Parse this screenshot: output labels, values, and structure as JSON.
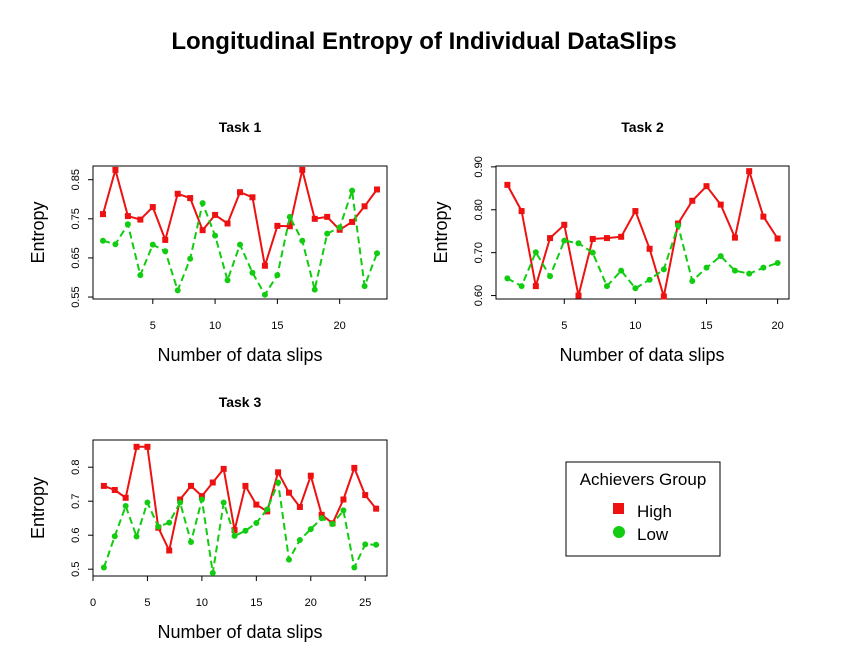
{
  "title": "Longitudinal Entropy of Individual DataSlips",
  "colors": {
    "High": "#ee1111",
    "Low": "#11cc11"
  },
  "legend": {
    "title": "Achievers Group",
    "entries": [
      {
        "label": "High",
        "marker": "square",
        "color": "#ee1111"
      },
      {
        "label": "Low",
        "marker": "circle",
        "color": "#11cc11"
      }
    ]
  },
  "chart_data": [
    {
      "type": "line",
      "title": "Task 1",
      "xlabel": "Number of data slips",
      "ylabel": "Entropy",
      "xlim": [
        0.2,
        23.8
      ],
      "ylim": [
        0.545,
        0.885
      ],
      "xticks": [
        5,
        10,
        15,
        20
      ],
      "yticks": [
        0.55,
        0.65,
        0.75,
        0.85
      ],
      "ytick_labels": [
        "0.55",
        "0.65",
        "0.75",
        "0.85"
      ],
      "series": [
        {
          "name": "High",
          "line": "solid",
          "marker": "square",
          "x": [
            1,
            2,
            3,
            4,
            5,
            6,
            7,
            8,
            9,
            10,
            11,
            12,
            13,
            14,
            15,
            16,
            17,
            18,
            19,
            20,
            21,
            22,
            23
          ],
          "y": [
            0.762,
            0.875,
            0.757,
            0.748,
            0.78,
            0.696,
            0.814,
            0.803,
            0.721,
            0.76,
            0.738,
            0.818,
            0.805,
            0.63,
            0.732,
            0.731,
            0.875,
            0.75,
            0.755,
            0.722,
            0.742,
            0.782,
            0.825
          ]
        },
        {
          "name": "Low",
          "line": "dashed",
          "marker": "circle",
          "x": [
            1,
            2,
            3,
            4,
            5,
            6,
            7,
            8,
            9,
            10,
            11,
            12,
            13,
            14,
            15,
            16,
            17,
            18,
            19,
            20,
            21,
            22,
            23
          ],
          "y": [
            0.694,
            0.685,
            0.736,
            0.606,
            0.684,
            0.667,
            0.567,
            0.648,
            0.79,
            0.707,
            0.593,
            0.684,
            0.612,
            0.556,
            0.606,
            0.755,
            0.694,
            0.569,
            0.712,
            0.728,
            0.822,
            0.578,
            0.662
          ]
        }
      ]
    },
    {
      "type": "line",
      "title": "Task 2",
      "xlabel": "Number of data slips",
      "ylabel": "Entropy",
      "xlim": [
        0.2,
        20.8
      ],
      "ylim": [
        0.592,
        0.902
      ],
      "xticks": [
        5,
        10,
        15,
        20
      ],
      "yticks": [
        0.6,
        0.7,
        0.8,
        0.9
      ],
      "ytick_labels": [
        "0.60",
        "0.70",
        "0.80",
        "0.90"
      ],
      "series": [
        {
          "name": "High",
          "line": "solid",
          "marker": "square",
          "x": [
            1,
            2,
            3,
            4,
            5,
            6,
            7,
            8,
            9,
            10,
            11,
            12,
            13,
            14,
            15,
            16,
            17,
            18,
            19,
            20
          ],
          "y": [
            0.858,
            0.797,
            0.622,
            0.734,
            0.765,
            0.6,
            0.732,
            0.734,
            0.737,
            0.797,
            0.709,
            0.598,
            0.768,
            0.821,
            0.855,
            0.812,
            0.735,
            0.89,
            0.784,
            0.733
          ]
        },
        {
          "name": "Low",
          "line": "dashed",
          "marker": "circle",
          "x": [
            1,
            2,
            3,
            4,
            5,
            6,
            7,
            8,
            9,
            10,
            11,
            12,
            13,
            14,
            15,
            16,
            17,
            18,
            19,
            20
          ],
          "y": [
            0.64,
            0.622,
            0.701,
            0.645,
            0.728,
            0.722,
            0.7,
            0.622,
            0.658,
            0.617,
            0.637,
            0.661,
            0.763,
            0.634,
            0.665,
            0.692,
            0.658,
            0.651,
            0.665,
            0.676
          ]
        }
      ]
    },
    {
      "type": "line",
      "title": "Task 3",
      "xlabel": "Number of data slips",
      "ylabel": "Entropy",
      "xlim": [
        0,
        27
      ],
      "ylim": [
        0.48,
        0.88
      ],
      "xticks": [
        0,
        5,
        10,
        15,
        20,
        25
      ],
      "yticks": [
        0.5,
        0.6,
        0.7,
        0.8
      ],
      "ytick_labels": [
        "0.5",
        "0.6",
        "0.7",
        "0.8"
      ],
      "series": [
        {
          "name": "High",
          "line": "solid",
          "marker": "square",
          "x": [
            1,
            2,
            3,
            4,
            5,
            6,
            7,
            8,
            9,
            10,
            11,
            12,
            13,
            14,
            15,
            16,
            17,
            18,
            19,
            20,
            21,
            22,
            23,
            24,
            25,
            26
          ],
          "y": [
            0.745,
            0.733,
            0.71,
            0.86,
            0.86,
            0.622,
            0.555,
            0.705,
            0.745,
            0.715,
            0.755,
            0.795,
            0.615,
            0.745,
            0.69,
            0.67,
            0.785,
            0.725,
            0.683,
            0.775,
            0.66,
            0.635,
            0.705,
            0.798,
            0.718,
            0.678
          ]
        },
        {
          "name": "Low",
          "line": "dashed",
          "marker": "circle",
          "x": [
            1,
            2,
            3,
            4,
            5,
            6,
            7,
            8,
            9,
            10,
            11,
            12,
            13,
            14,
            15,
            16,
            17,
            18,
            19,
            20,
            21,
            22,
            23,
            24,
            25,
            26
          ],
          "y": [
            0.505,
            0.597,
            0.686,
            0.596,
            0.696,
            0.625,
            0.637,
            0.696,
            0.58,
            0.705,
            0.489,
            0.696,
            0.598,
            0.613,
            0.636,
            0.676,
            0.755,
            0.528,
            0.586,
            0.618,
            0.65,
            0.633,
            0.673,
            0.505,
            0.573,
            0.572
          ]
        }
      ]
    }
  ]
}
